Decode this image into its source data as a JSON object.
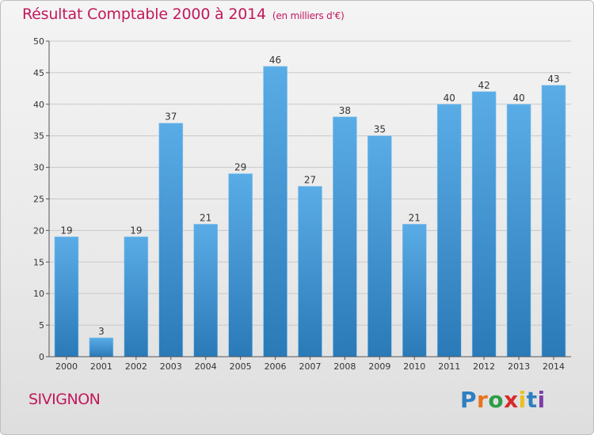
{
  "title": "Résultat Comptable 2000 à 2014",
  "unit": "(en milliers d'€)",
  "commune": "SIVIGNON",
  "logo": {
    "letters": [
      "P",
      "r",
      "o",
      "x",
      "i",
      "t",
      "i"
    ],
    "colors": [
      "#2e7fc1",
      "#e8741c",
      "#2e9d47",
      "#d62b2b",
      "#e8c21c",
      "#2e7fc1",
      "#7b3fa8"
    ]
  },
  "colors": {
    "bar_top": "#5aace6",
    "bar_bottom": "#2a7ab8",
    "title": "#c2185b",
    "grid": "#c8c8c8"
  },
  "chart_data": {
    "type": "bar",
    "categories": [
      "2000",
      "2001",
      "2002",
      "2003",
      "2004",
      "2005",
      "2006",
      "2007",
      "2008",
      "2009",
      "2010",
      "2011",
      "2012",
      "2013",
      "2014"
    ],
    "values": [
      19,
      3,
      19,
      37,
      21,
      29,
      46,
      27,
      38,
      35,
      21,
      40,
      42,
      40,
      43
    ],
    "yticks": [
      0,
      5,
      10,
      15,
      20,
      25,
      30,
      35,
      40,
      45,
      50
    ],
    "ylim": [
      0,
      50
    ],
    "grid": true
  }
}
